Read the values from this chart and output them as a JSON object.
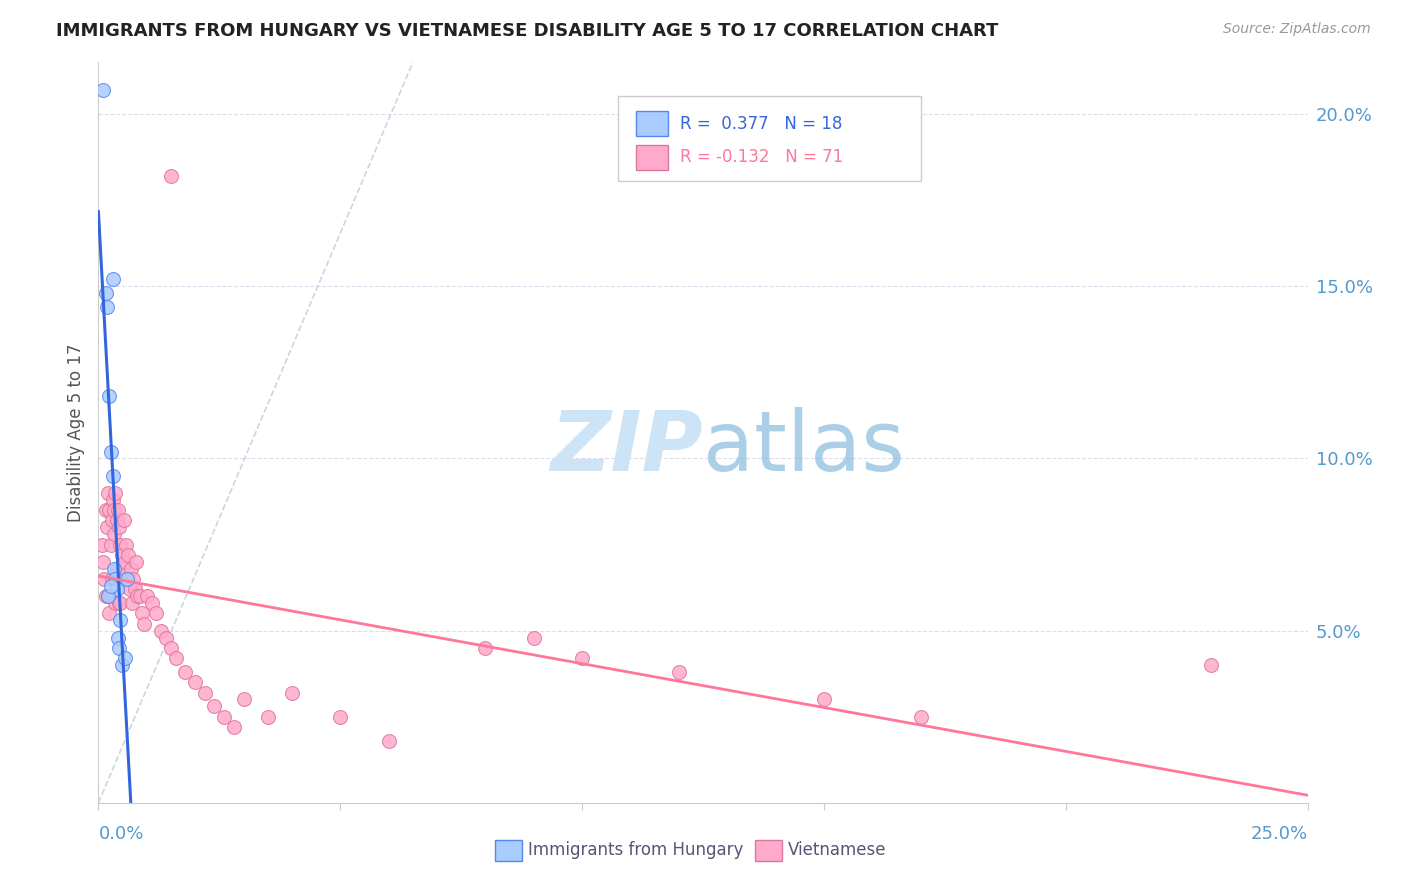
{
  "title": "IMMIGRANTS FROM HUNGARY VS VIETNAMESE DISABILITY AGE 5 TO 17 CORRELATION CHART",
  "source": "Source: ZipAtlas.com",
  "ylabel": "Disability Age 5 to 17",
  "color_hungary": "#aaccff",
  "color_hungarian_edge": "#5588ee",
  "color_vietnamese": "#ffaacc",
  "color_vietnamese_edge": "#dd7799",
  "color_hungary_line": "#3366dd",
  "color_vietnamese_line": "#ff7799",
  "color_dashed": "#bbccdd",
  "watermark_color": "#cce4f5",
  "xlim": [
    0.0,
    0.25
  ],
  "ylim": [
    0.0,
    0.215
  ],
  "yticks": [
    0.05,
    0.1,
    0.15,
    0.2
  ],
  "ytick_labels": [
    "5.0%",
    "10.0%",
    "15.0%",
    "20.0%"
  ],
  "xtick_color": "#5599cc",
  "hungary_x": [
    0.001,
    0.003,
    0.0015,
    0.0018,
    0.0022,
    0.0025,
    0.003,
    0.0032,
    0.0035,
    0.0038,
    0.004,
    0.0042,
    0.0045,
    0.0048,
    0.002,
    0.0025,
    0.0055,
    0.006
  ],
  "hungary_y": [
    0.207,
    0.152,
    0.148,
    0.144,
    0.118,
    0.102,
    0.095,
    0.068,
    0.065,
    0.062,
    0.048,
    0.045,
    0.053,
    0.04,
    0.06,
    0.063,
    0.042,
    0.065
  ],
  "vietnamese_x": [
    0.0008,
    0.001,
    0.0012,
    0.0015,
    0.0015,
    0.0018,
    0.002,
    0.002,
    0.0022,
    0.0022,
    0.0025,
    0.0025,
    0.0028,
    0.0028,
    0.003,
    0.003,
    0.0032,
    0.0033,
    0.0035,
    0.0035,
    0.0038,
    0.0038,
    0.004,
    0.004,
    0.0042,
    0.0042,
    0.0045,
    0.0045,
    0.0048,
    0.005,
    0.0052,
    0.0055,
    0.0058,
    0.006,
    0.0062,
    0.0065,
    0.0068,
    0.007,
    0.0072,
    0.0075,
    0.0078,
    0.008,
    0.0085,
    0.009,
    0.0095,
    0.01,
    0.011,
    0.012,
    0.013,
    0.014,
    0.015,
    0.016,
    0.018,
    0.02,
    0.022,
    0.024,
    0.026,
    0.028,
    0.03,
    0.035,
    0.04,
    0.05,
    0.06,
    0.08,
    0.09,
    0.1,
    0.12,
    0.15,
    0.17,
    0.23,
    0.015
  ],
  "vietnamese_y": [
    0.075,
    0.07,
    0.065,
    0.085,
    0.06,
    0.08,
    0.09,
    0.06,
    0.085,
    0.055,
    0.075,
    0.06,
    0.082,
    0.065,
    0.088,
    0.06,
    0.085,
    0.078,
    0.09,
    0.058,
    0.082,
    0.068,
    0.085,
    0.065,
    0.08,
    0.058,
    0.075,
    0.058,
    0.072,
    0.068,
    0.082,
    0.07,
    0.075,
    0.065,
    0.072,
    0.062,
    0.068,
    0.058,
    0.065,
    0.062,
    0.07,
    0.06,
    0.06,
    0.055,
    0.052,
    0.06,
    0.058,
    0.055,
    0.05,
    0.048,
    0.045,
    0.042,
    0.038,
    0.035,
    0.032,
    0.028,
    0.025,
    0.022,
    0.03,
    0.025,
    0.032,
    0.025,
    0.018,
    0.045,
    0.048,
    0.042,
    0.038,
    0.03,
    0.025,
    0.04,
    0.182
  ]
}
